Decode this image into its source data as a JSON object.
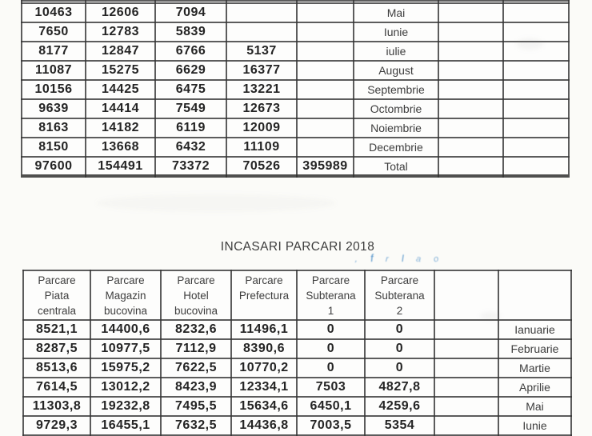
{
  "page": {
    "title": "INCASARI PARCARI 2018"
  },
  "table1": {
    "rows": [
      [
        "10463",
        "12606",
        "7094",
        "",
        "",
        "Mai",
        "",
        ""
      ],
      [
        "7650",
        "12783",
        "5839",
        "",
        "",
        "Iunie",
        "",
        ""
      ],
      [
        "8177",
        "12847",
        "6766",
        "5137",
        "",
        "iulie",
        "",
        ""
      ],
      [
        "11087",
        "15275",
        "6629",
        "16377",
        "",
        "August",
        "",
        ""
      ],
      [
        "10156",
        "14425",
        "6475",
        "13221",
        "",
        "Septembrie",
        "",
        ""
      ],
      [
        "9639",
        "14414",
        "7549",
        "12673",
        "",
        "Octombrie",
        "",
        ""
      ],
      [
        "8163",
        "14182",
        "6119",
        "12009",
        "",
        "Noiembrie",
        "",
        ""
      ],
      [
        "8150",
        "13668",
        "6432",
        "11109",
        "",
        "Decembrie",
        "",
        ""
      ],
      [
        "97600",
        "154491",
        "73372",
        "70526",
        "395989",
        "Total",
        "",
        ""
      ]
    ]
  },
  "table2": {
    "headers": [
      "Parcare\nPiata\ncentrala",
      "Parcare\nMagazin\nbucovina",
      "Parcare\nHotel\nbucovina",
      "Parcare\nPrefectura",
      "Parcare\nSubterana\n1",
      "Parcare\nSubterana\n2",
      "",
      ""
    ],
    "rows": [
      [
        "8521,1",
        "14400,6",
        "8232,6",
        "11496,1",
        "0",
        "0",
        "",
        "Ianuarie"
      ],
      [
        "8287,5",
        "10977,5",
        "7112,9",
        "8390,6",
        "0",
        "0",
        "",
        "Februarie"
      ],
      [
        "8513,6",
        "15975,2",
        "7622,5",
        "10770,2",
        "0",
        "0",
        "",
        "Martie"
      ],
      [
        "7614,5",
        "13012,2",
        "8423,9",
        "12334,1",
        "7503",
        "4827,8",
        "",
        "Aprilie"
      ],
      [
        "11303,8",
        "19232,8",
        "7495,5",
        "15634,6",
        "6450,1",
        "4259,6",
        "",
        "Mai"
      ],
      [
        "9729,3",
        "16455,1",
        "7632,5",
        "14436,8",
        "7003,5",
        "5354",
        "",
        "Iunie"
      ]
    ]
  },
  "annotations": {
    "blue_marks": [
      ",",
      "f",
      "r",
      "l",
      "a",
      "o"
    ]
  },
  "colors": {
    "ink": "#242424",
    "light_ink": "#3d3d3d",
    "border": "#343434",
    "handwriting_blue": "#3e86c5",
    "paper": "#fbfbf8"
  }
}
